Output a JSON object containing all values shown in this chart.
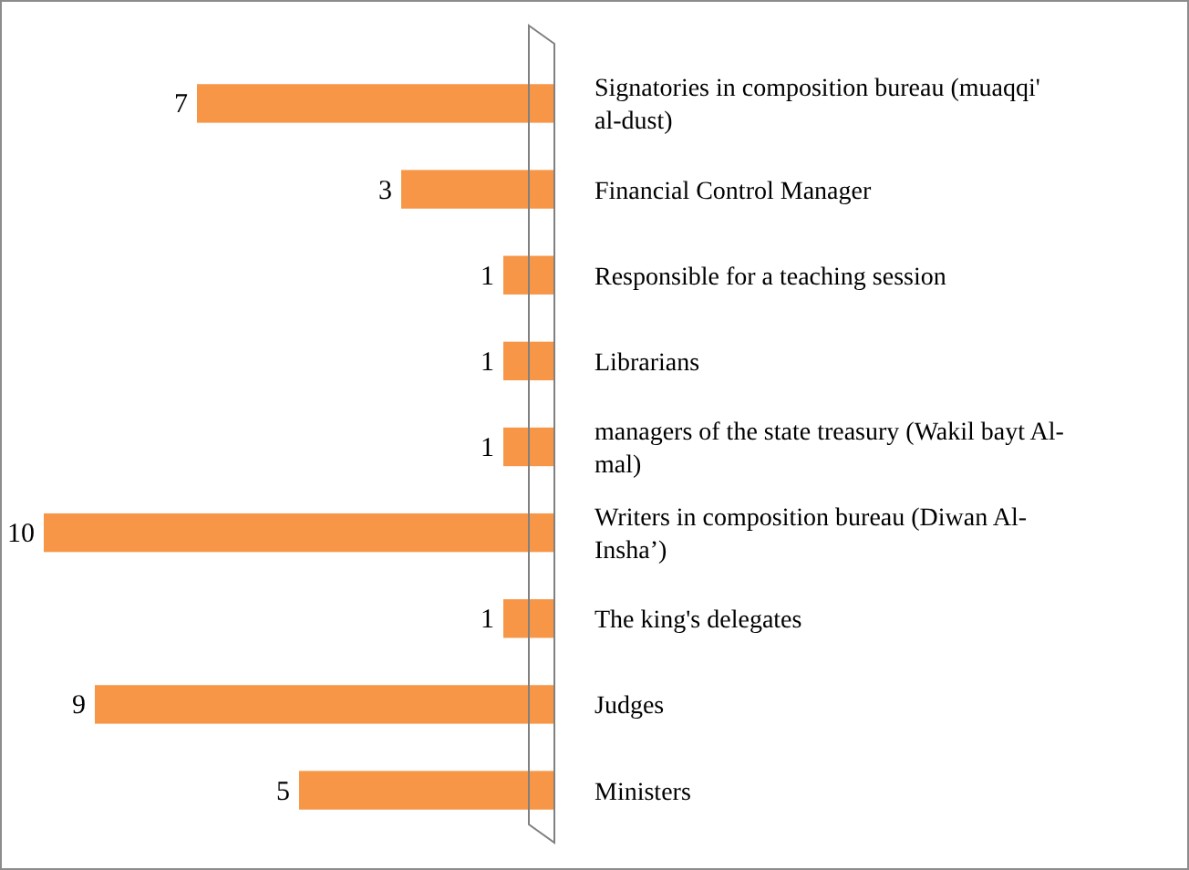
{
  "chart_data": {
    "type": "bar",
    "orientation": "horizontal",
    "categories": [
      "Signatories in composition bureau (muaqqi' al-dust)",
      "Financial Control Manager",
      "Responsible for a teaching session",
      "Librarians",
      "managers of the state treasury (Wakil bayt Al-mal)",
      "Writers in composition bureau (Diwan Al-Insha’)",
      "The king's delegates",
      "Judges",
      "Ministers"
    ],
    "values": [
      7,
      3,
      1,
      1,
      1,
      10,
      1,
      9,
      5
    ],
    "color": "#f79646",
    "data_labels": true
  }
}
